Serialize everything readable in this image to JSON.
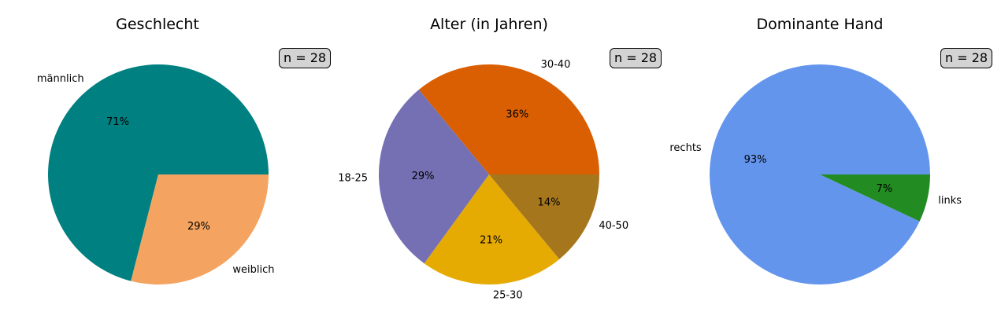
{
  "chart_data": [
    {
      "type": "pie",
      "title": "Geschlecht",
      "annotation": "n = 28",
      "slices": [
        {
          "label": "männlich",
          "value": 71,
          "pct_label": "71%",
          "color": "#008080"
        },
        {
          "label": "weiblich",
          "value": 29,
          "pct_label": "29%",
          "color": "#f4a460"
        }
      ]
    },
    {
      "type": "pie",
      "title": "Alter (in Jahren)",
      "annotation": "n = 28",
      "slices": [
        {
          "label": "30-40",
          "value": 36,
          "pct_label": "36%",
          "color": "#d95f02"
        },
        {
          "label": "18-25",
          "value": 29,
          "pct_label": "29%",
          "color": "#7570b3"
        },
        {
          "label": "25-30",
          "value": 21,
          "pct_label": "21%",
          "color": "#e6ab02"
        },
        {
          "label": "40-50",
          "value": 14,
          "pct_label": "14%",
          "color": "#a6761d"
        }
      ]
    },
    {
      "type": "pie",
      "title": "Dominante Hand",
      "annotation": "n = 28",
      "slices": [
        {
          "label": "rechts",
          "value": 93,
          "pct_label": "93%",
          "color": "#6495ed"
        },
        {
          "label": "links",
          "value": 7,
          "pct_label": "7%",
          "color": "#228b22"
        }
      ]
    }
  ]
}
